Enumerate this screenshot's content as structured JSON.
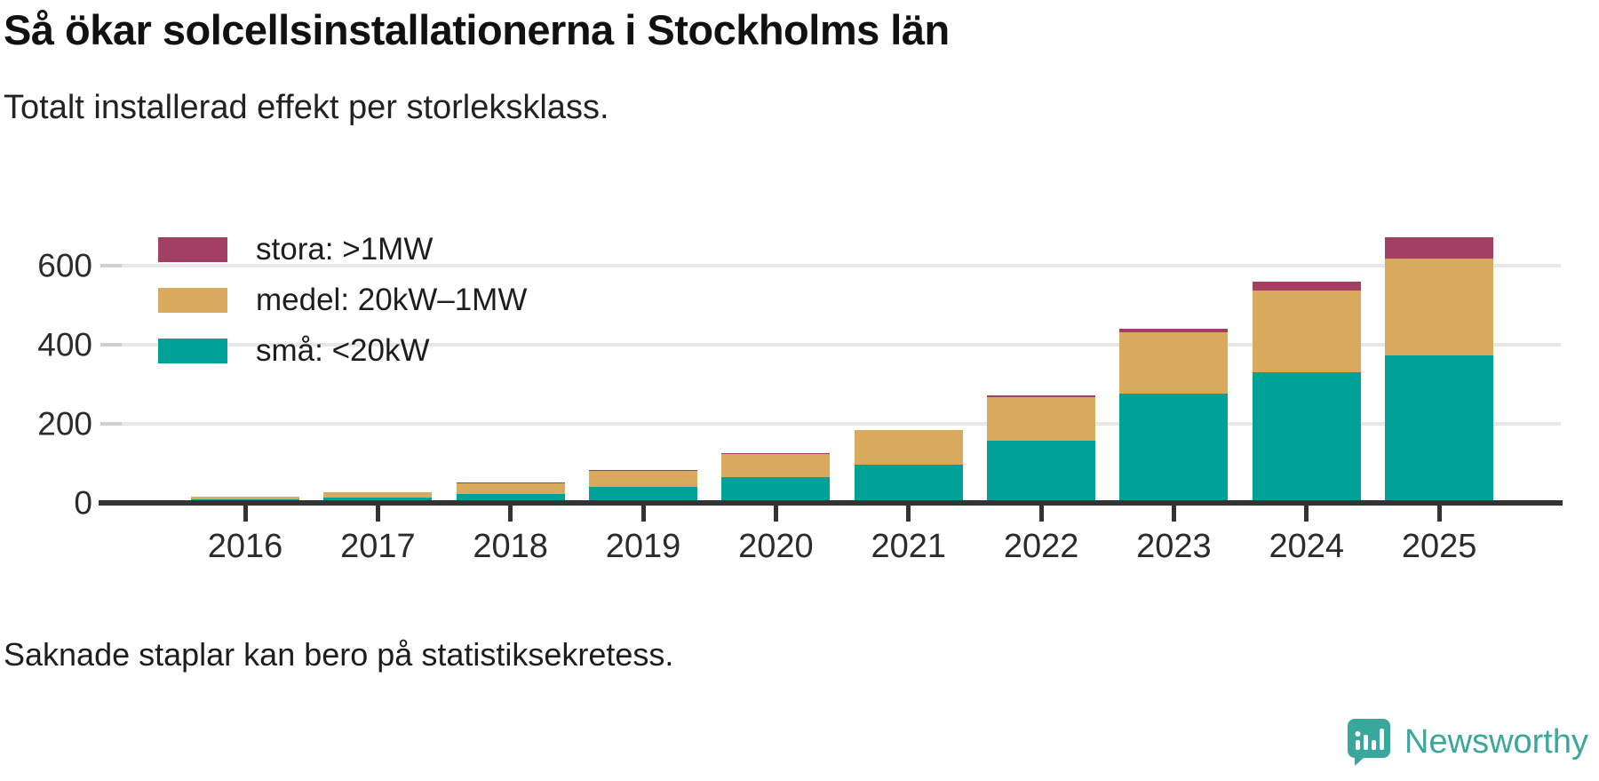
{
  "header": {
    "title": "Så ökar solcellsinstallationerna i Stockholms län",
    "subtitle": "Totalt installerad effekt per storleksklass."
  },
  "footer": {
    "note": "Saknade staplar kan bero på statistiksekretess."
  },
  "brand": {
    "name": "Newsworthy",
    "color": "#3aa79d",
    "icon": "bar-chart-bubble-logo"
  },
  "colors": {
    "text": "#1d1d1d",
    "tick_label": "#2b2b2b",
    "grid": "#e7e7e7",
    "axis": "#333333",
    "background": "#ffffff"
  },
  "chart_data": {
    "type": "bar",
    "stacked": true,
    "title": "Så ökar solcellsinstallationerna i Stockholms län",
    "subtitle": "Totalt installerad effekt per storleksklass.",
    "xlabel": "",
    "ylabel": "",
    "categories": [
      "2016",
      "2017",
      "2018",
      "2019",
      "2020",
      "2021",
      "2022",
      "2023",
      "2024",
      "2025"
    ],
    "series": [
      {
        "name": "stora: >1MW",
        "color": "#a43f64",
        "values": [
          0,
          2,
          3,
          3,
          3,
          0,
          4,
          10,
          23,
          54
        ]
      },
      {
        "name": "medel: 20kW–1MW",
        "color": "#d9aa5d",
        "values": [
          8,
          13,
          27,
          40,
          59,
          87,
          111,
          154,
          205,
          244
        ]
      },
      {
        "name": "små: <20kW",
        "color": "#00a197",
        "values": [
          8,
          13,
          22,
          41,
          65,
          97,
          158,
          278,
          332,
          374
        ]
      }
    ],
    "totals": [
      16,
      28,
      52,
      84,
      127,
      184,
      273,
      442,
      560,
      672
    ],
    "yticks": [
      0,
      200,
      400,
      600
    ],
    "ylim": [
      0,
      680
    ],
    "grid": "horizontal",
    "legend_position": "top-left",
    "stack_order_bottom_to_top": [
      "små: <20kW",
      "medel: 20kW–1MW",
      "stora: >1MW"
    ]
  }
}
